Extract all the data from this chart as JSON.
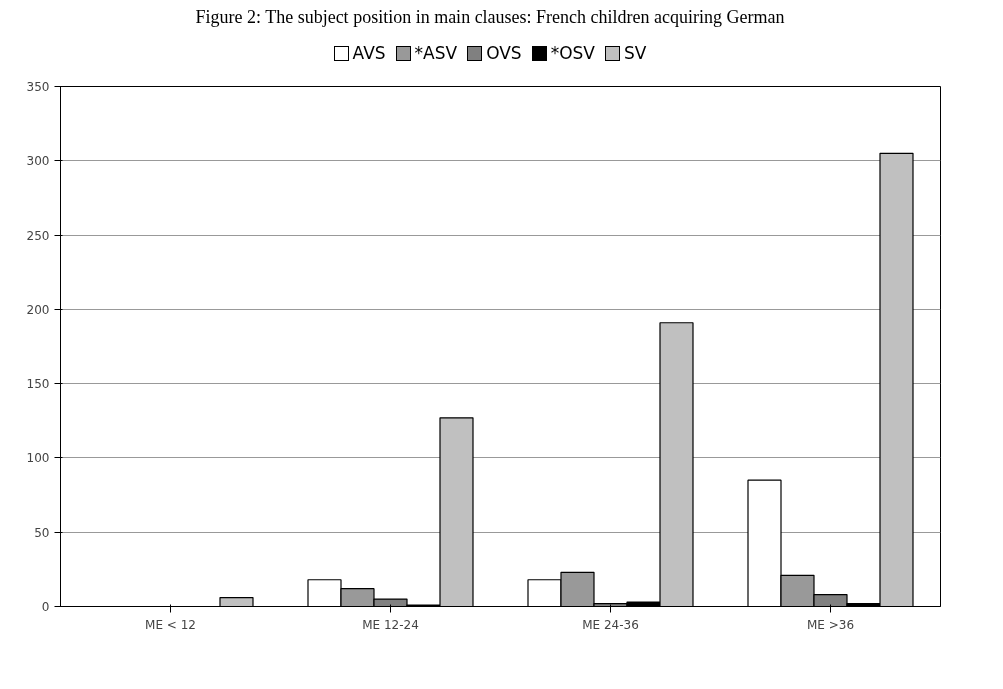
{
  "chart_data": {
    "type": "bar",
    "title": "Figure 2: The subject position in main clauses: French children acquiring German",
    "categories": [
      "ME < 12",
      "ME 12-24",
      "ME 24-36",
      "ME >36"
    ],
    "series": [
      {
        "name": "AVS",
        "color": "#ffffff",
        "values": [
          0,
          18,
          18,
          85
        ]
      },
      {
        "name": "*ASV",
        "color": "#999999",
        "values": [
          0,
          12,
          23,
          21
        ]
      },
      {
        "name": "OVS",
        "color": "#808080",
        "values": [
          0,
          5,
          2,
          8
        ]
      },
      {
        "name": "*OSV",
        "color": "#000000",
        "values": [
          0,
          1,
          3,
          2
        ]
      },
      {
        "name": "SV",
        "color": "#c0c0c0",
        "values": [
          6,
          127,
          191,
          305
        ]
      }
    ],
    "ylim": [
      0,
      350
    ],
    "yticks": [
      0,
      50,
      100,
      150,
      200,
      250,
      300,
      350
    ],
    "grid": "y",
    "legend": "top"
  }
}
